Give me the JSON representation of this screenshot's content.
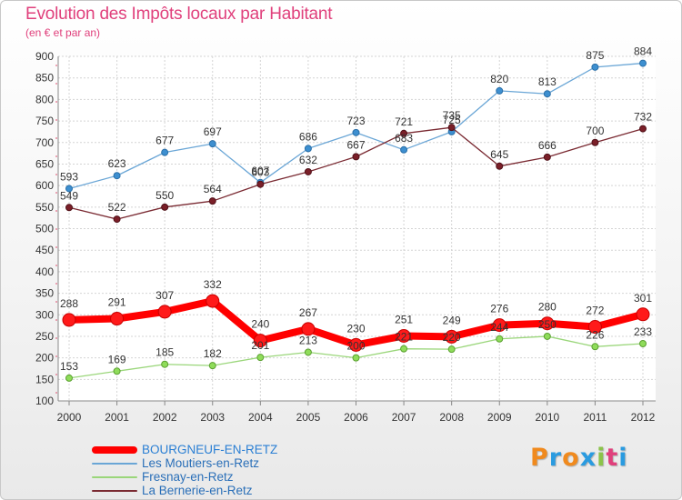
{
  "chart_data": {
    "type": "line",
    "title": "Evolution des Impôts locaux par Habitant",
    "subtitle": "(en € et par an)",
    "x": [
      "2000",
      "2001",
      "2002",
      "2003",
      "2004",
      "2005",
      "2006",
      "2007",
      "2008",
      "2009",
      "2010",
      "2011",
      "2012"
    ],
    "yticks": [
      100,
      150,
      200,
      250,
      300,
      350,
      400,
      450,
      500,
      550,
      600,
      650,
      700,
      750,
      800,
      850,
      900
    ],
    "ylim": [
      100,
      900
    ],
    "grid": "horizontal",
    "legend_position": "bottom-left",
    "series": [
      {
        "name": "BOURGNEUF-EN-RETZ",
        "color": "#ff0000",
        "values": [
          288,
          291,
          307,
          332,
          240,
          267,
          230,
          251,
          249,
          276,
          280,
          272,
          301
        ]
      },
      {
        "name": "Les Moutiers-en-Retz",
        "color": "#6aa6d6",
        "values": [
          593,
          623,
          677,
          697,
          607,
          686,
          723,
          683,
          725,
          820,
          813,
          875,
          884
        ]
      },
      {
        "name": "Fresnay-en-Retz",
        "color": "#9ad67a",
        "values": [
          153,
          169,
          185,
          182,
          201,
          213,
          200,
          221,
          220,
          244,
          250,
          226,
          233
        ]
      },
      {
        "name": "La Bernerie-en-Retz",
        "color": "#7a2a32",
        "values": [
          549,
          522,
          550,
          564,
          603,
          632,
          667,
          721,
          735,
          645,
          666,
          700,
          732
        ]
      }
    ]
  },
  "logo": {
    "letters": [
      "P",
      "r",
      "o",
      "x",
      "i",
      "t",
      "i"
    ]
  }
}
